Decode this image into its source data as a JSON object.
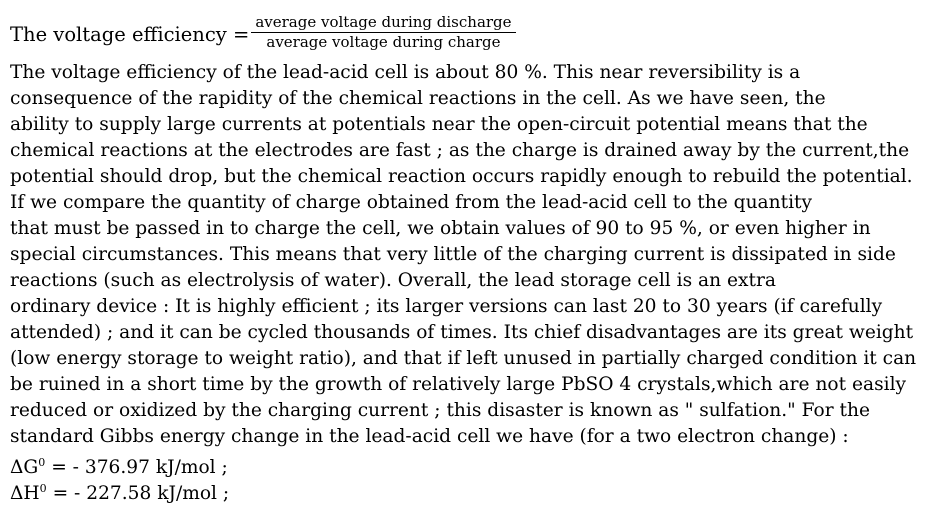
{
  "formula": {
    "lhs": "The voltage efficiency =",
    "numerator": "average voltage during discharge",
    "denominator": "average voltage during charge"
  },
  "paragraph_lines": [
    "The voltage efficiency of the lead-acid cell is about 80 %. This near reversibility is a",
    "consequence of the rapidity of the chemical reactions in the cell. As we have seen, the",
    "ability to supply large currents at potentials near the open-circuit potential means that the",
    "chemical reactions at the electrodes are fast ; as the charge is drained away by the current,the",
    "potential should drop, but the chemical reaction occurs rapidly enough to rebuild the potential.",
    "If we compare the quantity of charge obtained from the lead-acid cell to the quantity",
    "that must be passed in to charge the cell, we obtain values of 90 to 95 %, or even higher in",
    "special circumstances. This means that very little of the charging current is dissipated in side",
    "reactions (such as electrolysis of water). Overall, the lead storage cell is an extra",
    "ordinary device : It is highly efficient ; its larger versions can last 20 to 30 years (if carefully",
    "attended) ; and it can be cycled thousands of times. Its chief disadvantages are its great weight",
    "(low energy storage to weight ratio), and that if left unused in partially charged condition it can",
    "be ruined in a short time by the growth of relatively large PbSO 4 crystals,which are not easily",
    "reduced or oxidized by the charging current ; this disaster is known as \" sulfation.\" For the",
    "standard Gibbs energy change in the lead-acid cell we have (for a two electron change) :"
  ],
  "equations": [
    {
      "symbol": "ΔG",
      "superscript": "0",
      "rest": " = - 376.97 kJ/mol ;"
    },
    {
      "symbol": "ΔH",
      "superscript": "0",
      "rest": " = - 227.58 kJ/mol ;"
    }
  ]
}
